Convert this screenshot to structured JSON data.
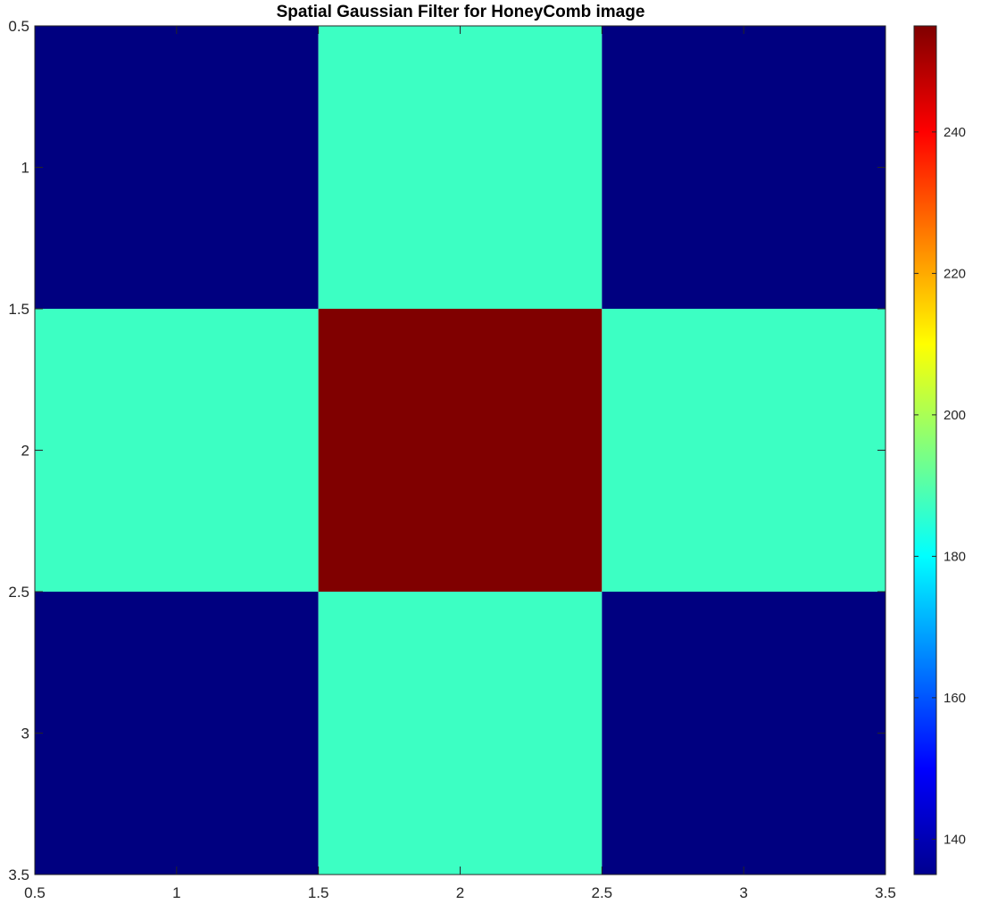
{
  "chart_data": {
    "type": "heatmap",
    "title": "Spatial Gaussian Filter for HoneyComb image",
    "xlabel": "",
    "ylabel": "",
    "x_ticks": [
      "0.5",
      "1",
      "1.5",
      "2",
      "2.5",
      "3",
      "3.5"
    ],
    "y_ticks": [
      "0.5",
      "1",
      "1.5",
      "2",
      "2.5",
      "3",
      "3.5"
    ],
    "xlim": [
      0.5,
      3.5
    ],
    "ylim": [
      0.5,
      3.5
    ],
    "y_direction": "reverse",
    "colormap": "jet",
    "clim": [
      135,
      255
    ],
    "colorbar_ticks": [
      "140",
      "160",
      "180",
      "200",
      "220",
      "240"
    ],
    "colorbar_placement": "right",
    "grid": false,
    "values": [
      [
        135,
        187,
        135
      ],
      [
        187,
        255,
        187
      ],
      [
        135,
        187,
        135
      ]
    ]
  }
}
